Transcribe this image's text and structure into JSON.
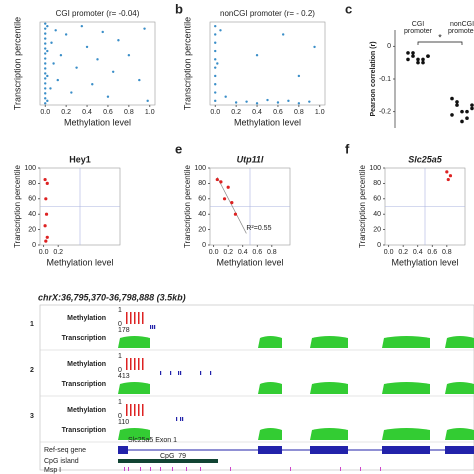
{
  "panels": {
    "a": {
      "title": "CGI promoter (r= -0.04)",
      "xlabel": "Methylation level",
      "ylabel": "Transcription percentile",
      "color": "#3a8ec8",
      "xlim": [
        -0.05,
        1.05
      ],
      "ylim": [
        0,
        100
      ],
      "xticks": [
        {
          "value": 0,
          "label": "0.0"
        },
        {
          "value": 0.2,
          "label": "0.2"
        },
        {
          "value": 0.4,
          "label": "0.4"
        },
        {
          "value": 0.6,
          "label": "0.6"
        },
        {
          "value": 0.8,
          "label": "0.8"
        },
        {
          "value": 1,
          "label": "1.0"
        }
      ],
      "points": [
        [
          0,
          2
        ],
        [
          0,
          8
        ],
        [
          0,
          14
        ],
        [
          0,
          20
        ],
        [
          0,
          26
        ],
        [
          0,
          32
        ],
        [
          0,
          38
        ],
        [
          0,
          44
        ],
        [
          0,
          50
        ],
        [
          0,
          56
        ],
        [
          0,
          62
        ],
        [
          0,
          68
        ],
        [
          0,
          74
        ],
        [
          0,
          80
        ],
        [
          0,
          86
        ],
        [
          0,
          92
        ],
        [
          0,
          98
        ],
        [
          0.02,
          5
        ],
        [
          0.02,
          35
        ],
        [
          0.02,
          65
        ],
        [
          0.02,
          95
        ],
        [
          0.05,
          20
        ],
        [
          0.06,
          75
        ],
        [
          0.08,
          50
        ],
        [
          0.1,
          90
        ],
        [
          0.12,
          30
        ],
        [
          0.15,
          60
        ],
        [
          0.2,
          85
        ],
        [
          0.25,
          15
        ],
        [
          0.3,
          45
        ],
        [
          0.35,
          95
        ],
        [
          0.4,
          70
        ],
        [
          0.45,
          25
        ],
        [
          0.5,
          55
        ],
        [
          0.55,
          88
        ],
        [
          0.6,
          10
        ],
        [
          0.65,
          40
        ],
        [
          0.7,
          78
        ],
        [
          0.8,
          60
        ],
        [
          0.9,
          30
        ],
        [
          0.95,
          92
        ],
        [
          0.98,
          5
        ]
      ]
    },
    "b": {
      "label": "b",
      "title": "nonCGI promoter (r= - 0.2)",
      "xlabel": "Methylation level",
      "ylabel": "Transcription percentile",
      "color": "#3a8ec8",
      "xlim": [
        -0.05,
        1.05
      ],
      "ylim": [
        0,
        100
      ],
      "xticks": [
        {
          "value": 0,
          "label": "0.0"
        },
        {
          "value": 0.2,
          "label": "0.2"
        },
        {
          "value": 0.4,
          "label": "0.4"
        },
        {
          "value": 0.6,
          "label": "0.6"
        },
        {
          "value": 0.8,
          "label": "0.8"
        },
        {
          "value": 1,
          "label": "1.0"
        }
      ],
      "points": [
        [
          0,
          5
        ],
        [
          0,
          15
        ],
        [
          0,
          25
        ],
        [
          0,
          35
        ],
        [
          0,
          45
        ],
        [
          0,
          55
        ],
        [
          0,
          65
        ],
        [
          0,
          75
        ],
        [
          0,
          85
        ],
        [
          0,
          95
        ],
        [
          0.02,
          50
        ],
        [
          0.05,
          90
        ],
        [
          0.1,
          10
        ],
        [
          0.2,
          3
        ],
        [
          0.3,
          4
        ],
        [
          0.4,
          2
        ],
        [
          0.5,
          6
        ],
        [
          0.6,
          3
        ],
        [
          0.7,
          5
        ],
        [
          0.8,
          2
        ],
        [
          0.9,
          4
        ],
        [
          0.4,
          60
        ],
        [
          0.65,
          85
        ],
        [
          0.8,
          35
        ],
        [
          0.95,
          70
        ]
      ]
    },
    "c": {
      "label": "c",
      "ylabel": "Pearson correlation (r)",
      "star": "*",
      "ylim": [
        -0.25,
        0.05
      ],
      "yticks": [
        0,
        -0.1,
        -0.2
      ],
      "groups": [
        {
          "name": [
            "CGI",
            "promoter"
          ],
          "values": [
            -0.02,
            -0.03,
            -0.04,
            -0.05,
            -0.03,
            -0.04,
            -0.02,
            -0.05,
            -0.04,
            -0.03
          ]
        },
        {
          "name": [
            "nonCGI",
            "promoter"
          ],
          "values": [
            -0.16,
            -0.18,
            -0.2,
            -0.22,
            -0.19,
            -0.21,
            -0.17,
            -0.23,
            -0.2,
            -0.18
          ]
        }
      ]
    },
    "d": {
      "title": "Hey1",
      "xlabel": "Methylation level",
      "ylabel": "Transcription percentile",
      "color": "#d22",
      "xlim": [
        -0.05,
        1.05
      ],
      "ylim": [
        0,
        100
      ],
      "yticks": [
        0,
        20,
        40,
        60,
        80,
        100
      ],
      "xticks": [
        {
          "value": 0,
          "label": "0.0"
        },
        {
          "value": 0.2,
          "label": "0.2"
        }
      ],
      "points": [
        [
          0.02,
          85
        ],
        [
          0.05,
          80
        ],
        [
          0.03,
          60
        ],
        [
          0.04,
          40
        ],
        [
          0.02,
          25
        ],
        [
          0.05,
          10
        ],
        [
          0.03,
          5
        ]
      ]
    },
    "e": {
      "label": "e",
      "title": "Utp11l",
      "xlabel": "Methylation level",
      "ylabel": "Transcription percentile",
      "annotation": "R²=0.55",
      "color": "#d22",
      "xlim": [
        -0.05,
        1.05
      ],
      "ylim": [
        0,
        100
      ],
      "yticks": [
        0,
        20,
        40,
        60,
        80,
        100
      ],
      "xticks": [
        {
          "value": 0,
          "label": "0.0"
        },
        {
          "value": 0.2,
          "label": "0.2"
        },
        {
          "value": 0.4,
          "label": "0.4"
        },
        {
          "value": 0.6,
          "label": "0.6"
        },
        {
          "value": 0.8,
          "label": "0.8"
        }
      ],
      "points": [
        [
          0.05,
          85
        ],
        [
          0.1,
          82
        ],
        [
          0.2,
          75
        ],
        [
          0.25,
          55
        ],
        [
          0.3,
          40
        ],
        [
          0.15,
          60
        ]
      ]
    },
    "f": {
      "label": "f",
      "title": "Slc25a5",
      "xlabel": "Methylation level",
      "ylabel": "Transcription percentile",
      "color": "#d22",
      "xlim": [
        -0.05,
        1.05
      ],
      "ylim": [
        0,
        100
      ],
      "yticks": [
        0,
        20,
        40,
        60,
        80,
        100
      ],
      "xticks": [
        {
          "value": 0,
          "label": "0.0"
        },
        {
          "value": 0.2,
          "label": "0.2"
        },
        {
          "value": 0.4,
          "label": "0.4"
        },
        {
          "value": 0.6,
          "label": "0.6"
        },
        {
          "value": 0.8,
          "label": "0.8"
        }
      ],
      "points": [
        [
          0.8,
          95
        ],
        [
          0.85,
          90
        ],
        [
          0.82,
          85
        ]
      ]
    }
  },
  "browser": {
    "locus": "chrX:36,795,370-36,798,888 (3.5kb)",
    "samples": [
      {
        "num": "1",
        "meth": "Methylation",
        "mmax": "1",
        "mmin": "0",
        "trans": "Transcription",
        "tmax": "178"
      },
      {
        "num": "2",
        "meth": "Methylation",
        "mmax": "1",
        "mmin": "0",
        "trans": "Transcription",
        "tmax": "413"
      },
      {
        "num": "3",
        "meth": "Methylation",
        "mmax": "1",
        "mmin": "0",
        "trans": "Transcription",
        "tmax": "110"
      }
    ],
    "refseq": "Ref-seq gene",
    "gene": "Slc25a5 Exon 1",
    "cpg": "CpG island",
    "cpglabel": "CpG_79",
    "msp": "Msp I"
  }
}
